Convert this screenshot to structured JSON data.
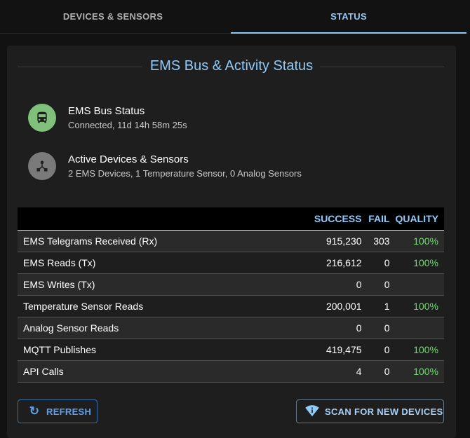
{
  "tabs": [
    {
      "label": "DEVICES & SENSORS"
    },
    {
      "label": "STATUS"
    }
  ],
  "title": "EMS Bus & Activity Status",
  "status_items": [
    {
      "primary": "EMS Bus Status",
      "secondary": "Connected, 11d 14h 58m 25s",
      "icon": "bus-icon",
      "color": "#7fc17a"
    },
    {
      "primary": "Active Devices & Sensors",
      "secondary": "2 EMS Devices, 1 Temperature Sensor, 0 Analog Sensors",
      "icon": "hub-icon",
      "color": "#7a7a7a"
    }
  ],
  "table": {
    "headers": [
      "",
      "SUCCESS",
      "FAIL",
      "QUALITY"
    ],
    "rows": [
      {
        "name": "EMS Telegrams Received (Rx)",
        "success": "915,230",
        "fail": "303",
        "quality": "100%"
      },
      {
        "name": "EMS Reads (Tx)",
        "success": "216,612",
        "fail": "0",
        "quality": "100%"
      },
      {
        "name": "EMS Writes (Tx)",
        "success": "0",
        "fail": "0",
        "quality": ""
      },
      {
        "name": "Temperature Sensor Reads",
        "success": "200,001",
        "fail": "1",
        "quality": "100%"
      },
      {
        "name": "Analog Sensor Reads",
        "success": "0",
        "fail": "0",
        "quality": ""
      },
      {
        "name": "MQTT Publishes",
        "success": "419,475",
        "fail": "0",
        "quality": "100%"
      },
      {
        "name": "API Calls",
        "success": "4",
        "fail": "0",
        "quality": "100%"
      }
    ]
  },
  "buttons": {
    "refresh": "REFRESH",
    "scan": "SCAN FOR NEW DEVICES"
  },
  "colors": {
    "accent": "#90caf9",
    "quality": "#6ee06e"
  }
}
